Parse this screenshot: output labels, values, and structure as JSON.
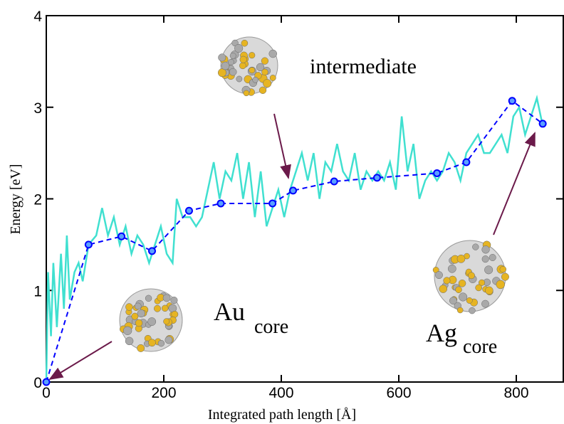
{
  "chart_data": {
    "type": "line",
    "xlabel": "Integrated path length [Å]",
    "ylabel": "Energy [eV]",
    "xlim": [
      0,
      880
    ],
    "ylim": [
      0,
      4
    ],
    "xticks": [
      0,
      200,
      400,
      600,
      800
    ],
    "yticks": [
      0,
      1,
      2,
      3,
      4
    ],
    "series": [
      {
        "color": "#40e0d0",
        "dashed": false,
        "markers": false,
        "x": [
          0,
          3,
          8,
          12,
          18,
          25,
          30,
          35,
          40,
          48,
          55,
          62,
          72,
          85,
          95,
          105,
          115,
          125,
          135,
          145,
          155,
          165,
          175,
          185,
          195,
          205,
          215,
          222,
          232,
          245,
          255,
          265,
          275,
          285,
          295,
          305,
          315,
          325,
          335,
          345,
          355,
          365,
          375,
          385,
          395,
          405,
          415,
          425,
          435,
          445,
          455,
          465,
          475,
          485,
          495,
          505,
          515,
          525,
          535,
          545,
          555,
          565,
          575,
          585,
          595,
          605,
          615,
          625,
          635,
          645,
          655,
          665,
          675,
          685,
          695,
          705,
          715,
          725,
          735,
          745,
          755,
          765,
          775,
          785,
          795,
          805,
          815,
          825,
          835,
          845
        ],
        "values": [
          0,
          1.2,
          0.5,
          1.3,
          0.6,
          1.4,
          0.8,
          1.6,
          0.9,
          1.2,
          1.3,
          1.1,
          1.5,
          1.6,
          1.9,
          1.6,
          1.8,
          1.5,
          1.7,
          1.4,
          1.6,
          1.5,
          1.3,
          1.5,
          1.7,
          1.4,
          1.3,
          2.0,
          1.8,
          1.8,
          1.7,
          1.8,
          2.1,
          2.4,
          2.0,
          2.3,
          2.2,
          2.5,
          2.0,
          2.4,
          1.8,
          2.3,
          1.7,
          1.9,
          2.1,
          1.8,
          2.1,
          2.3,
          2.5,
          2.2,
          2.5,
          2.0,
          2.4,
          2.3,
          2.6,
          2.3,
          2.2,
          2.5,
          2.1,
          2.3,
          2.2,
          2.3,
          2.2,
          2.4,
          2.1,
          2.9,
          2.3,
          2.6,
          2.0,
          2.2,
          2.3,
          2.2,
          2.3,
          2.5,
          2.4,
          2.2,
          2.5,
          2.6,
          2.7,
          2.5,
          2.5,
          2.6,
          2.7,
          2.5,
          2.9,
          3.0,
          2.7,
          2.9,
          3.1,
          2.8
        ]
      },
      {
        "color": "#0000ff",
        "dashed": true,
        "markers": true,
        "x": [
          0,
          72,
          128,
          180,
          243,
          297,
          385,
          420,
          490,
          563,
          665,
          715,
          793,
          845
        ],
        "values": [
          0,
          1.5,
          1.59,
          1.43,
          1.87,
          1.95,
          1.95,
          2.09,
          2.19,
          2.23,
          2.28,
          2.4,
          3.07,
          2.82
        ]
      }
    ],
    "annotations": {
      "intermediate": "intermediate",
      "au": "Au",
      "au_sub": "core",
      "ag": "Ag",
      "ag_sub": "core"
    }
  }
}
